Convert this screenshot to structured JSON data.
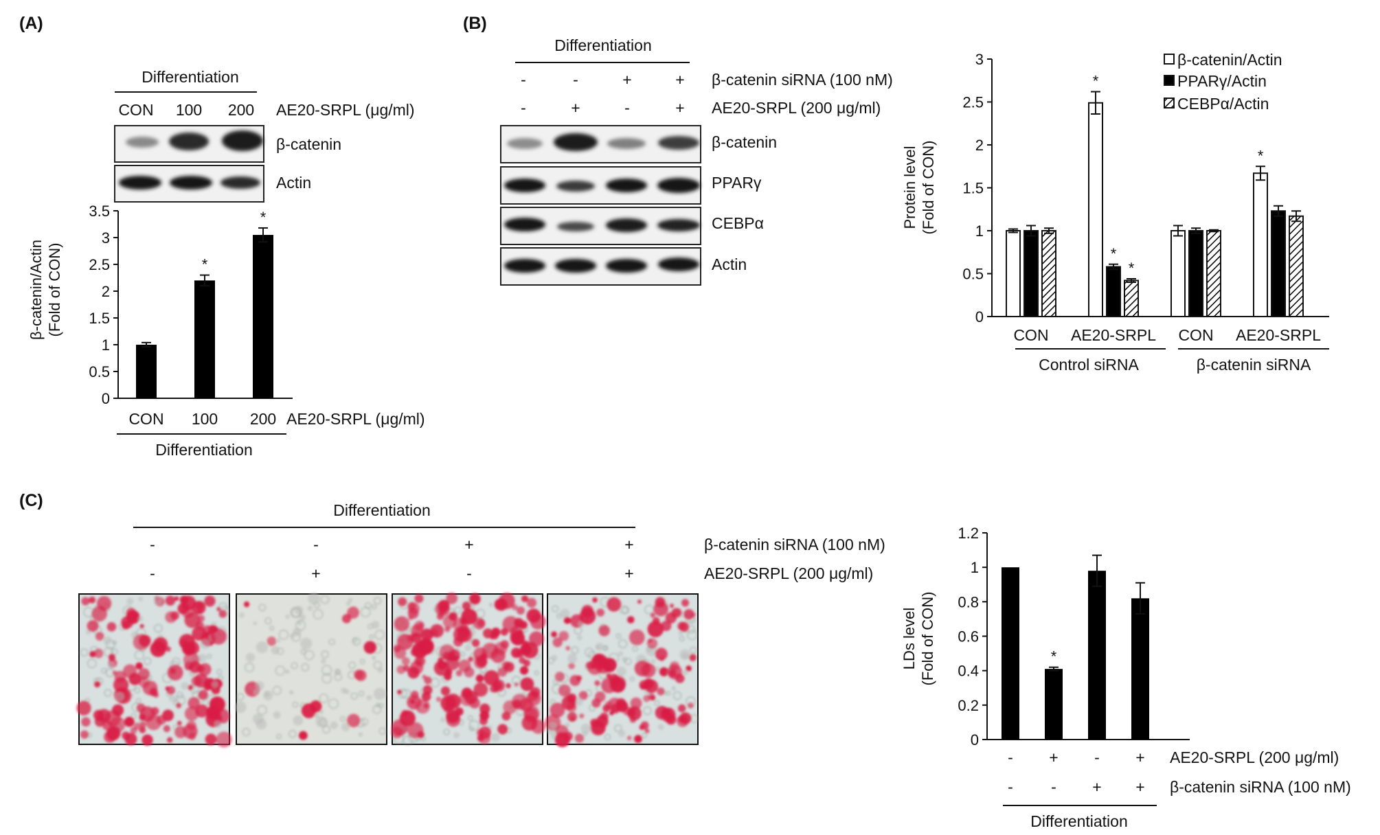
{
  "panels": {
    "a": "(A)",
    "b": "(B)",
    "c": "(C)"
  },
  "common": {
    "differentiation": "Differentiation",
    "con": "CON",
    "actin": "Actin",
    "asterisk": "*"
  },
  "panel_a": {
    "lanes": [
      "CON",
      "100",
      "200"
    ],
    "treatment": "AE20-SRPL (μg/ml)",
    "bands": [
      "β-catenin",
      "Actin"
    ]
  },
  "panel_b": {
    "sirna_label": "β-catenin siRNA (100 nM)",
    "sirna_signs": [
      "-",
      "-",
      "+",
      "+"
    ],
    "ae_label": "AE20-SRPL (200 μg/ml)",
    "ae_signs": [
      "-",
      "+",
      "-",
      "+"
    ],
    "bands": [
      "β-catenin",
      "PPARγ",
      "CEBPα",
      "Actin"
    ]
  },
  "panel_c": {
    "sirna_label": "β-catenin siRNA (100 nM)",
    "sirna_signs": [
      "-",
      "-",
      "+",
      "+"
    ],
    "ae_label": "AE20-SRPL (200 μg/ml)",
    "ae_signs": [
      "-",
      "+",
      "-",
      "+"
    ]
  },
  "colors": {
    "bar": "#000000",
    "stain": "#d91d45",
    "background": "#d8e1e0"
  },
  "chart_data": [
    {
      "id": "A",
      "type": "bar",
      "categories": [
        "CON",
        "100",
        "200"
      ],
      "values": [
        1.0,
        2.2,
        3.05
      ],
      "errors": [
        0.04,
        0.1,
        0.13
      ],
      "significance": [
        "",
        "*",
        "*"
      ],
      "ylabel": [
        "β-catenin/Actin",
        "(Fold of CON)"
      ],
      "xlabel": "AE20-SRPL (μg/ml)",
      "group_label": "Differentiation",
      "ylim": [
        0,
        3.5
      ],
      "yticks": [
        "0",
        "0.5",
        "1",
        "1.5",
        "2",
        "2.5",
        "3",
        "3.5"
      ]
    },
    {
      "id": "B",
      "type": "bar",
      "categories": [
        "CON",
        "AE20-SRPL",
        "CON",
        "AE20-SRPL"
      ],
      "groups": [
        "Control siRNA",
        "β-catenin siRNA"
      ],
      "series": [
        {
          "name": "β-catenin/Actin",
          "values": [
            1.0,
            2.49,
            1.0,
            1.67
          ],
          "errors": [
            0.02,
            0.13,
            0.06,
            0.08
          ],
          "significance": [
            "",
            "*",
            "",
            "*"
          ],
          "fill": "open"
        },
        {
          "name": "PPARγ/Actin",
          "values": [
            1.0,
            0.58,
            1.0,
            1.23
          ],
          "errors": [
            0.06,
            0.03,
            0.03,
            0.06
          ],
          "significance": [
            "",
            "*",
            "",
            ""
          ],
          "fill": "solid"
        },
        {
          "name": "CEBPα/Actin",
          "values": [
            1.0,
            0.42,
            1.0,
            1.17
          ],
          "errors": [
            0.03,
            0.02,
            0.01,
            0.06
          ],
          "significance": [
            "",
            "*",
            "",
            ""
          ],
          "fill": "hatched"
        }
      ],
      "ylabel": [
        "Protein level",
        "(Fold of CON)"
      ],
      "ylim": [
        0,
        3
      ],
      "yticks": [
        "0",
        "0.5",
        "1",
        "1.5",
        "2",
        "2.5",
        "3"
      ],
      "legend": "top-right"
    },
    {
      "id": "C",
      "type": "bar",
      "values": [
        1.0,
        0.41,
        0.98,
        0.82
      ],
      "errors": [
        0.0,
        0.01,
        0.09,
        0.09
      ],
      "significance": [
        "",
        "*",
        "",
        ""
      ],
      "rows": [
        {
          "label": "AE20-SRPL (200 μg/ml)",
          "signs": [
            "-",
            "+",
            "-",
            "+"
          ]
        },
        {
          "label": "β-catenin siRNA (100 nM)",
          "signs": [
            "-",
            "-",
            "+",
            "+"
          ]
        }
      ],
      "group_label": "Differentiation",
      "ylabel": [
        "LDs level",
        "(Fold of CON)"
      ],
      "ylim": [
        0,
        1.2
      ],
      "yticks": [
        "0",
        "0.2",
        "0.4",
        "0.6",
        "0.8",
        "1",
        "1.2"
      ]
    }
  ]
}
